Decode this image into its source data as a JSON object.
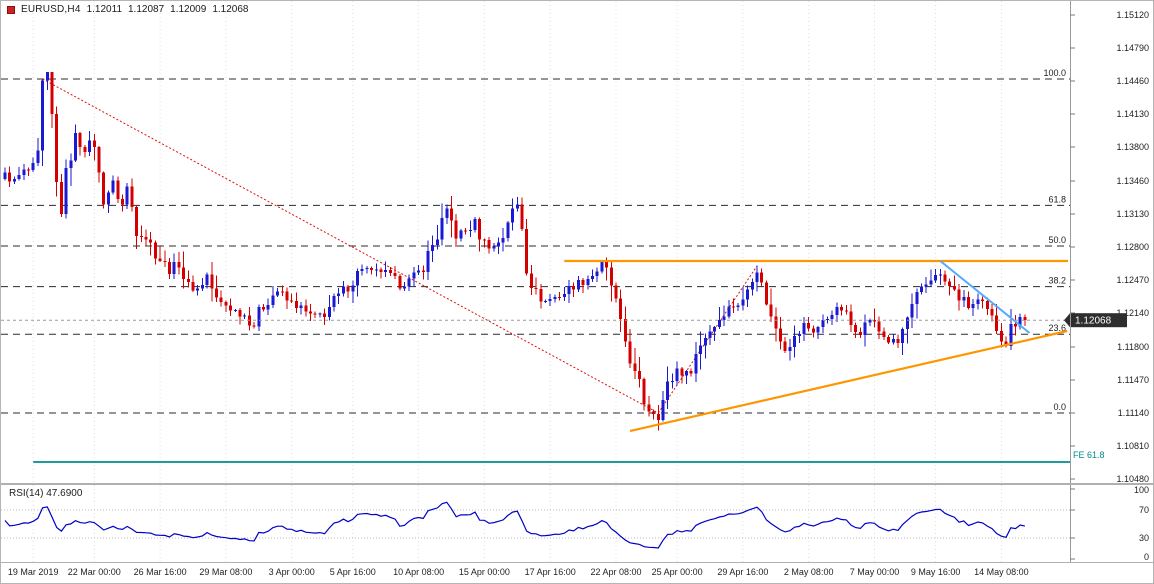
{
  "header": {
    "symbol": "EURUSD,H4",
    "open": "1.12011",
    "high": "1.12087",
    "low": "1.12009",
    "close": "1.12068"
  },
  "price_axis": {
    "labels": [
      "1.15120",
      "1.14790",
      "1.14460",
      "1.14130",
      "1.13800",
      "1.13460",
      "1.13130",
      "1.12800",
      "1.12470",
      "1.12140",
      "1.11800",
      "1.11470",
      "1.11140",
      "1.10810",
      "1.10480"
    ]
  },
  "time_axis": {
    "labels": [
      {
        "text": "19 Mar 2019",
        "index": 6
      },
      {
        "text": "22 Mar 00:00",
        "index": 19
      },
      {
        "text": "26 Mar 16:00",
        "index": 33
      },
      {
        "text": "29 Mar 08:00",
        "index": 47
      },
      {
        "text": "3 Apr 00:00",
        "index": 61
      },
      {
        "text": "5 Apr 16:00",
        "index": 74
      },
      {
        "text": "10 Apr 08:00",
        "index": 88
      },
      {
        "text": "15 Apr 00:00",
        "index": 102
      },
      {
        "text": "17 Apr 16:00",
        "index": 116
      },
      {
        "text": "22 Apr 08:00",
        "index": 130
      },
      {
        "text": "25 Apr 00:00",
        "index": 143
      },
      {
        "text": "29 Apr 16:00",
        "index": 157
      },
      {
        "text": "2 May 08:00",
        "index": 171
      },
      {
        "text": "7 May 00:00",
        "index": 185
      },
      {
        "text": "9 May 16:00",
        "index": 198
      },
      {
        "text": "14 May 08:00",
        "index": 212
      }
    ]
  },
  "fibonacci": {
    "levels": [
      {
        "label": "100.0",
        "price": 1.1448
      },
      {
        "label": "61.8",
        "price": 1.13216
      },
      {
        "label": "50.0",
        "price": 1.1281
      },
      {
        "label": "38.2",
        "price": 1.12404
      },
      {
        "label": "23.6",
        "price": 1.11928
      },
      {
        "label": "0.0",
        "price": 1.1114
      }
    ]
  },
  "lines": {
    "resistance": {
      "price": 1.1266,
      "from_index": 119
    },
    "support": {
      "i1": 133,
      "p1": 1.1096,
      "i2": 226,
      "p2": 1.1196
    },
    "breakdown": {
      "i1": 199,
      "p1": 1.1266,
      "i2": 218,
      "p2": 1.1194
    },
    "fe": {
      "price": 1.1065,
      "label": "FE 61.8",
      "from_index": 6
    },
    "swing_down": {
      "i1": 8,
      "p1": 1.1448,
      "i2": 139,
      "p2": 1.1114
    },
    "swing_up": {
      "i1": 139,
      "p1": 1.1114,
      "i2": 160,
      "p2": 1.1261
    }
  },
  "current_price": {
    "text": "1.12068",
    "price": 1.12068
  },
  "rsi": {
    "title": "RSI(14) 47.6900",
    "name": "RSI",
    "period": 14,
    "current": 47.69,
    "scale": [
      "100",
      "70",
      "30",
      "0"
    ],
    "scale_values": [
      100,
      70,
      30,
      0
    ],
    "levels": [
      70,
      30
    ]
  },
  "colors": {
    "bull": "#1a1ad2",
    "bear": "#d40000",
    "rsi": "#0000c8",
    "fib": "#2b2b2b",
    "orange": "#ff9500",
    "blue_trend": "#55aaff",
    "red_trend": "#e01010",
    "teal": "#008b8b",
    "grid": "#dcdcdc",
    "axis_text": "#1f1f1f",
    "badge_bg": "#2e2e2e",
    "badge_text": "#ffffff",
    "header_text": "#1a1a1a",
    "icon_red": "#cc2222",
    "rsi_level": "#bdbdbd",
    "axis_border": "#9a9a9a",
    "price_line": "#9a9a9a"
  },
  "chart_data": {
    "type": "candlestick",
    "symbol": "EURUSD",
    "timeframe": "H4",
    "title": "EURUSD H4 with Fibonacci retracement, trendlines and RSI(14)",
    "candle_count": 218,
    "last_close": 1.12068,
    "max_high": 1.1448,
    "min_low": 1.111,
    "price_top": 1.1512,
    "price_bottom": 1.1048,
    "ylim": [
      1.1048,
      1.1512
    ],
    "path_anchors": [
      [
        0,
        1.1352
      ],
      [
        2,
        1.1346
      ],
      [
        4,
        1.1355
      ],
      [
        6,
        1.1358
      ],
      [
        7,
        1.1368
      ],
      [
        8,
        1.144
      ],
      [
        9,
        1.1446
      ],
      [
        10,
        1.1408
      ],
      [
        11,
        1.1342
      ],
      [
        12,
        1.1316
      ],
      [
        13,
        1.135
      ],
      [
        14,
        1.1374
      ],
      [
        15,
        1.139
      ],
      [
        17,
        1.1378
      ],
      [
        19,
        1.1386
      ],
      [
        20,
        1.135
      ],
      [
        21,
        1.1328
      ],
      [
        23,
        1.1344
      ],
      [
        25,
        1.1322
      ],
      [
        26,
        1.134
      ],
      [
        28,
        1.13
      ],
      [
        30,
        1.129
      ],
      [
        33,
        1.1268
      ],
      [
        35,
        1.1256
      ],
      [
        37,
        1.1264
      ],
      [
        39,
        1.124
      ],
      [
        41,
        1.1238
      ],
      [
        43,
        1.1252
      ],
      [
        45,
        1.1226
      ],
      [
        47,
        1.1222
      ],
      [
        49,
        1.1216
      ],
      [
        51,
        1.1212
      ],
      [
        53,
        1.1202
      ],
      [
        55,
        1.1222
      ],
      [
        57,
        1.1232
      ],
      [
        58,
        1.1236
      ],
      [
        60,
        1.1226
      ],
      [
        62,
        1.1222
      ],
      [
        64,
        1.1214
      ],
      [
        66,
        1.121
      ],
      [
        68,
        1.1214
      ],
      [
        70,
        1.1226
      ],
      [
        72,
        1.1236
      ],
      [
        74,
        1.1246
      ],
      [
        76,
        1.126
      ],
      [
        78,
        1.1254
      ],
      [
        80,
        1.1256
      ],
      [
        82,
        1.125
      ],
      [
        84,
        1.1242
      ],
      [
        86,
        1.1246
      ],
      [
        88,
        1.1254
      ],
      [
        90,
        1.1272
      ],
      [
        92,
        1.1292
      ],
      [
        94,
        1.1316
      ],
      [
        96,
        1.1292
      ],
      [
        98,
        1.1296
      ],
      [
        100,
        1.1304
      ],
      [
        102,
        1.1284
      ],
      [
        104,
        1.128
      ],
      [
        106,
        1.1292
      ],
      [
        107,
        1.1308
      ],
      [
        109,
        1.1322
      ],
      [
        110,
        1.1302
      ],
      [
        111,
        1.1262
      ],
      [
        113,
        1.1232
      ],
      [
        115,
        1.1226
      ],
      [
        117,
        1.123
      ],
      [
        119,
        1.1234
      ],
      [
        121,
        1.1242
      ],
      [
        123,
        1.1246
      ],
      [
        125,
        1.1252
      ],
      [
        127,
        1.1262
      ],
      [
        128,
        1.1254
      ],
      [
        129,
        1.1242
      ],
      [
        130,
        1.1222
      ],
      [
        131,
        1.1198
      ],
      [
        132,
        1.1186
      ],
      [
        133,
        1.117
      ],
      [
        134,
        1.115
      ],
      [
        135,
        1.114
      ],
      [
        136,
        1.1126
      ],
      [
        137,
        1.1118
      ],
      [
        139,
        1.1113
      ],
      [
        140,
        1.1126
      ],
      [
        141,
        1.114
      ],
      [
        143,
        1.1158
      ],
      [
        145,
        1.1152
      ],
      [
        147,
        1.1172
      ],
      [
        149,
        1.1192
      ],
      [
        151,
        1.1202
      ],
      [
        153,
        1.1216
      ],
      [
        155,
        1.1222
      ],
      [
        157,
        1.1224
      ],
      [
        159,
        1.1254
      ],
      [
        160,
        1.126
      ],
      [
        161,
        1.124
      ],
      [
        162,
        1.1228
      ],
      [
        163,
        1.1208
      ],
      [
        165,
        1.1192
      ],
      [
        166,
        1.118
      ],
      [
        168,
        1.1188
      ],
      [
        170,
        1.1202
      ],
      [
        172,
        1.1196
      ],
      [
        174,
        1.1204
      ],
      [
        176,
        1.1216
      ],
      [
        178,
        1.1218
      ],
      [
        180,
        1.1202
      ],
      [
        182,
        1.1196
      ],
      [
        184,
        1.1208
      ],
      [
        186,
        1.1196
      ],
      [
        188,
        1.1186
      ],
      [
        190,
        1.1184
      ],
      [
        192,
        1.1208
      ],
      [
        194,
        1.1228
      ],
      [
        196,
        1.1242
      ],
      [
        198,
        1.1254
      ],
      [
        199,
        1.125
      ],
      [
        201,
        1.124
      ],
      [
        203,
        1.123
      ],
      [
        205,
        1.122
      ],
      [
        207,
        1.1226
      ],
      [
        209,
        1.1214
      ],
      [
        211,
        1.12
      ],
      [
        213,
        1.1184
      ],
      [
        214,
        1.1198
      ],
      [
        215,
        1.1206
      ],
      [
        216,
        1.1212
      ],
      [
        217,
        1.12068
      ]
    ],
    "indicator": {
      "name": "RSI",
      "period": 14,
      "current": 47.69
    }
  }
}
